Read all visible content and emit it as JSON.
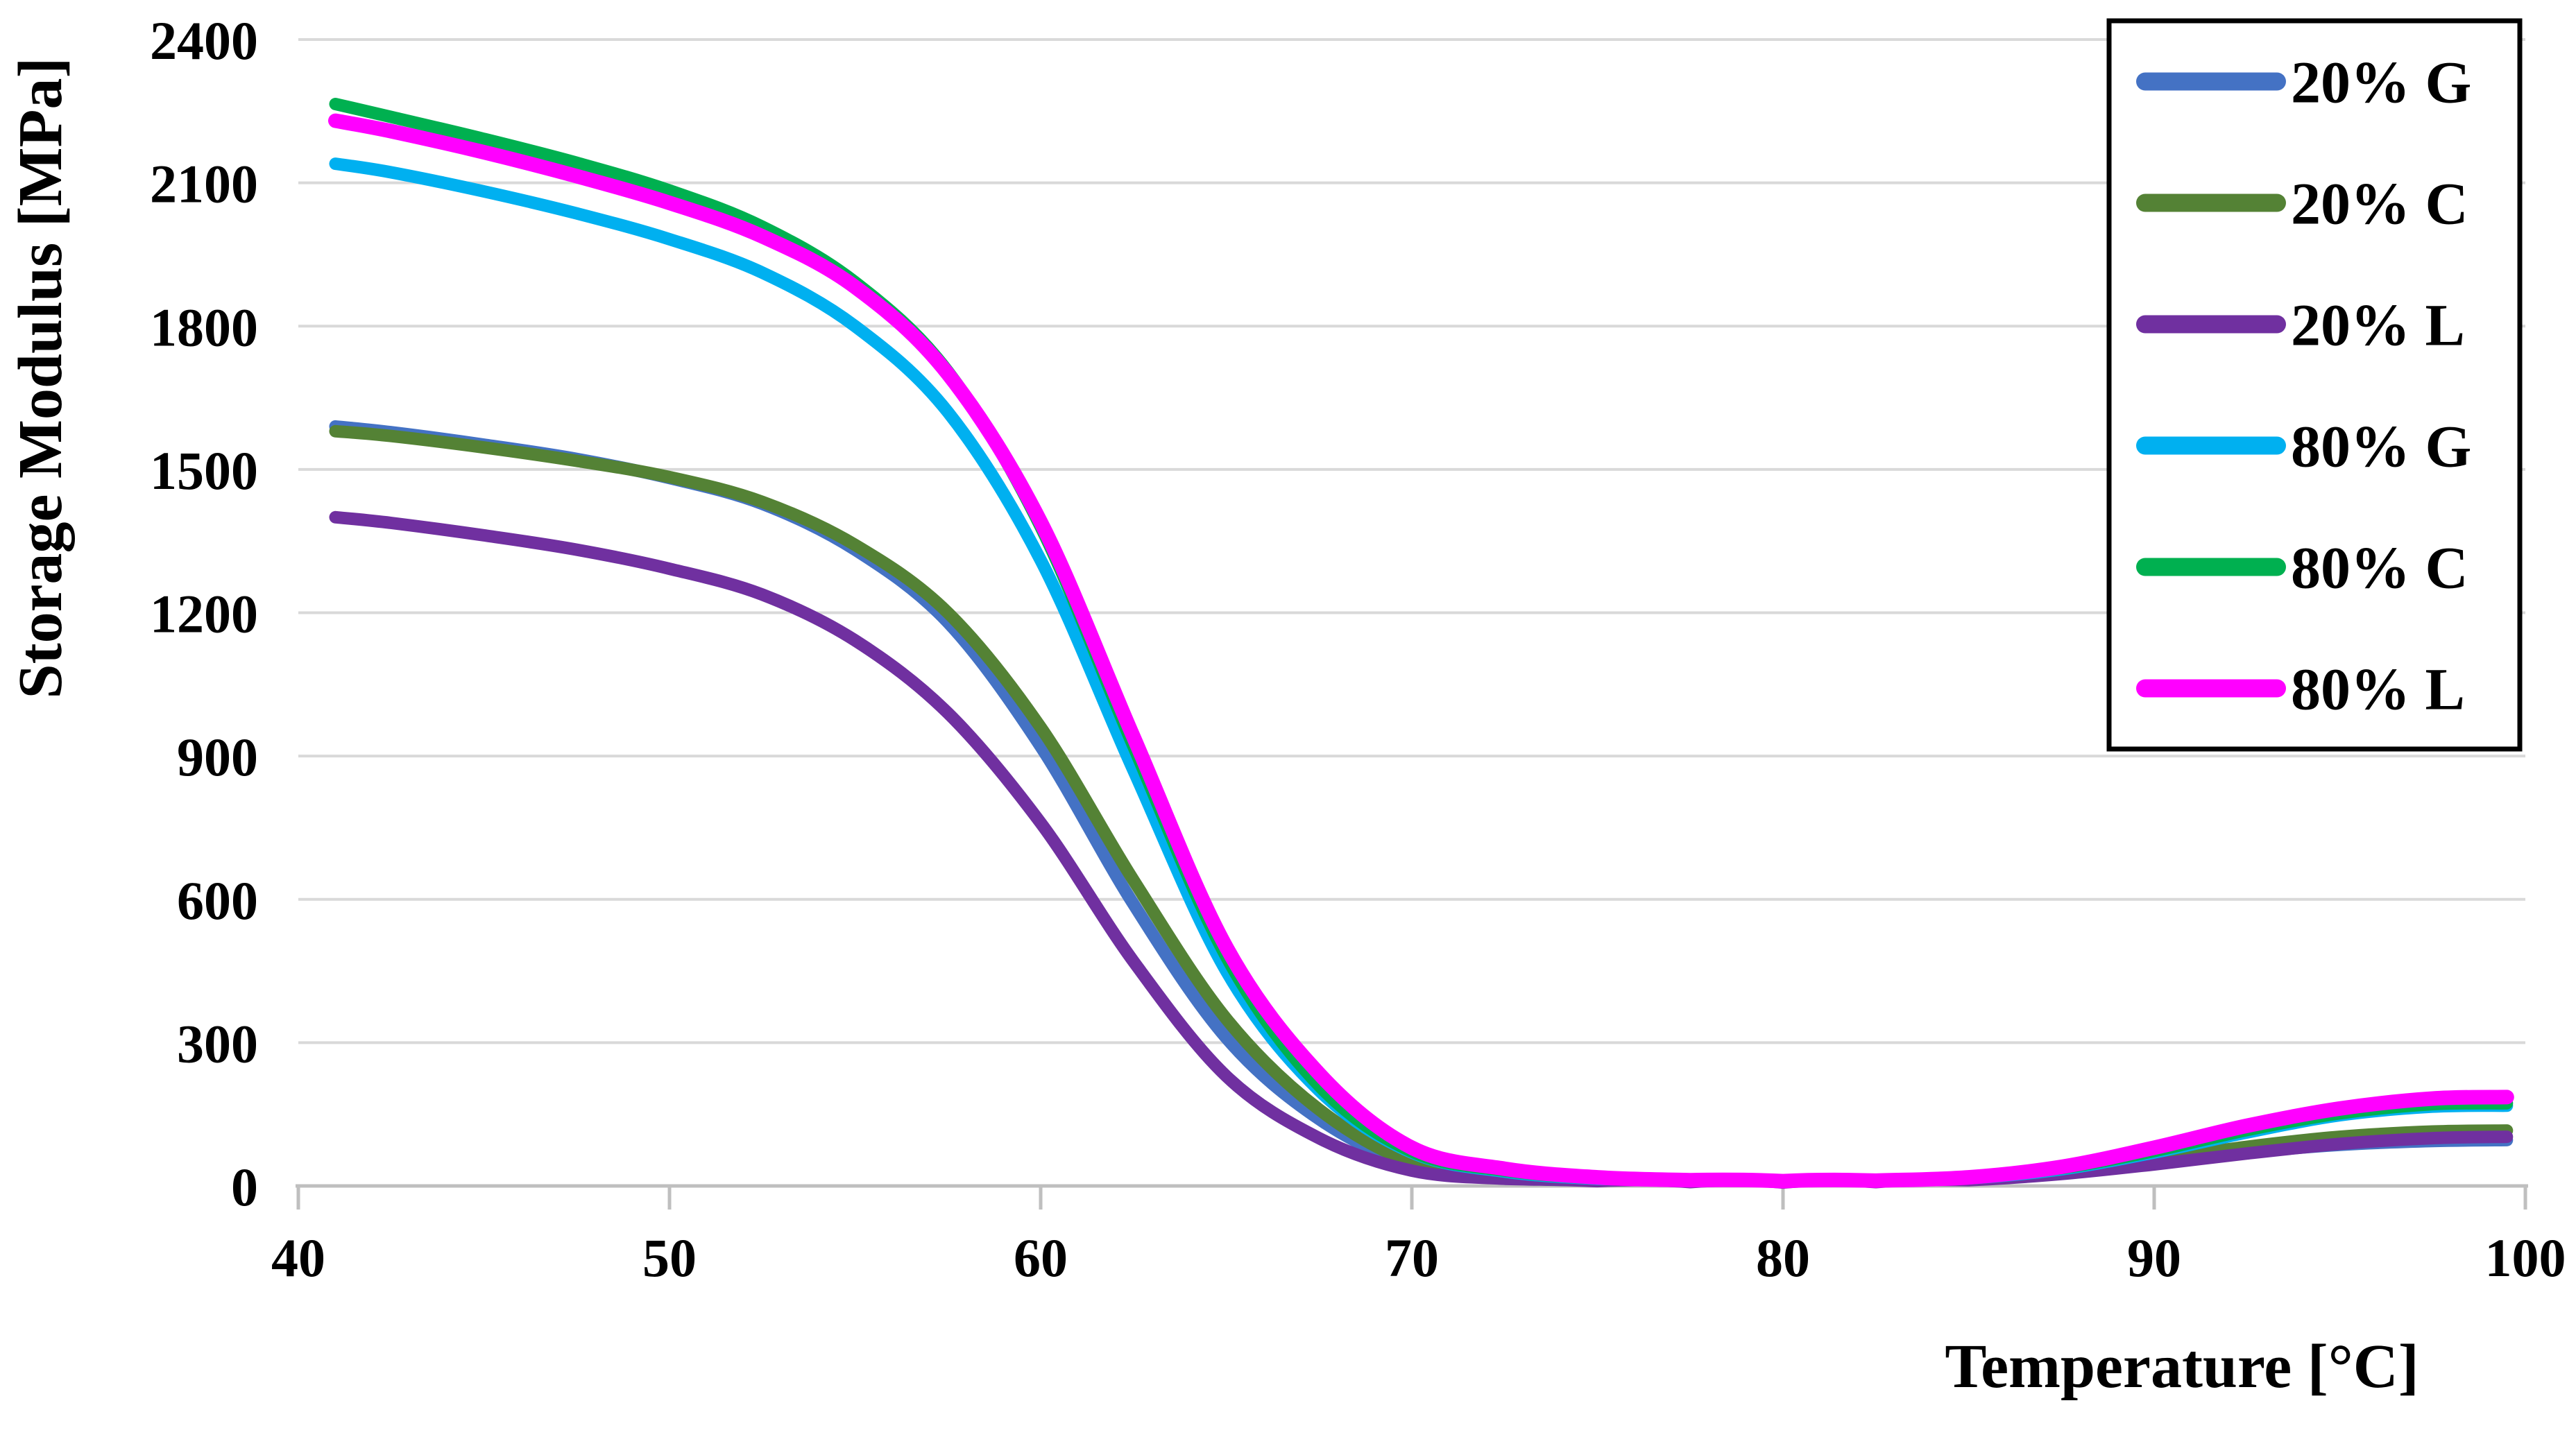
{
  "chart_data": {
    "type": "line",
    "title": "",
    "xlabel": "Temperature [°C]",
    "ylabel": "Storage Modulus [MPa]",
    "xlim": [
      40,
      100
    ],
    "ylim": [
      0,
      2400
    ],
    "x_ticks": [
      40,
      50,
      60,
      70,
      80,
      90,
      100
    ],
    "y_ticks": [
      0,
      300,
      600,
      900,
      1200,
      1500,
      1800,
      2100,
      2400
    ],
    "grid": "horizontal",
    "legend_position": "top-right",
    "x": [
      41,
      42.5,
      45,
      47.5,
      50,
      52.5,
      55,
      57.5,
      60,
      62.5,
      65,
      67.5,
      70,
      72.5,
      75,
      77.5,
      80,
      82.5,
      85,
      87.5,
      90,
      92.5,
      95,
      97.5,
      99.5
    ],
    "series": [
      {
        "name": "20% G",
        "color": "#4472C4",
        "line_width": 18,
        "values": [
          1590,
          1578,
          1552,
          1522,
          1482,
          1428,
          1332,
          1180,
          920,
          590,
          310,
          140,
          45,
          20,
          12,
          9,
          8,
          9,
          14,
          28,
          48,
          70,
          86,
          94,
          96
        ]
      },
      {
        "name": "20% C",
        "color": "#548235",
        "line_width": 18,
        "values": [
          1580,
          1570,
          1546,
          1518,
          1484,
          1432,
          1342,
          1200,
          960,
          640,
          350,
          160,
          50,
          22,
          13,
          9,
          8,
          9,
          15,
          30,
          55,
          82,
          103,
          114,
          116
        ]
      },
      {
        "name": "20% L",
        "color": "#7030A0",
        "line_width": 18,
        "values": [
          1400,
          1388,
          1362,
          1332,
          1292,
          1238,
          1142,
          990,
          760,
          470,
          230,
          100,
          32,
          15,
          10,
          8,
          7,
          8,
          12,
          25,
          45,
          68,
          88,
          100,
          103
        ]
      },
      {
        "name": "80% G",
        "color": "#00B0F0",
        "line_width": 18,
        "values": [
          2140,
          2122,
          2082,
          2036,
          1982,
          1912,
          1800,
          1620,
          1310,
          870,
          450,
          200,
          70,
          30,
          15,
          10,
          9,
          10,
          16,
          35,
          70,
          112,
          148,
          166,
          168
        ]
      },
      {
        "name": "80% C",
        "color": "#00B050",
        "line_width": 18,
        "values": [
          2265,
          2238,
          2192,
          2142,
          2084,
          2008,
          1892,
          1705,
          1380,
          920,
          480,
          210,
          72,
          32,
          16,
          11,
          9,
          10,
          17,
          37,
          73,
          117,
          152,
          171,
          173
        ]
      },
      {
        "name": "80% L",
        "color": "#FF00FF",
        "line_width": 21,
        "values": [
          2230,
          2208,
          2164,
          2114,
          2058,
          1988,
          1882,
          1700,
          1390,
          940,
          500,
          235,
          80,
          36,
          18,
          12,
          10,
          11,
          18,
          40,
          80,
          126,
          162,
          183,
          186
        ]
      }
    ],
    "styles": {
      "grid_color": "#D9D9D9",
      "axis_color": "#BFBFBF",
      "text_color": "#000000",
      "background": "#FFFFFF",
      "legend_border": "#000000",
      "legend_fill": "#FFFFFF"
    }
  }
}
